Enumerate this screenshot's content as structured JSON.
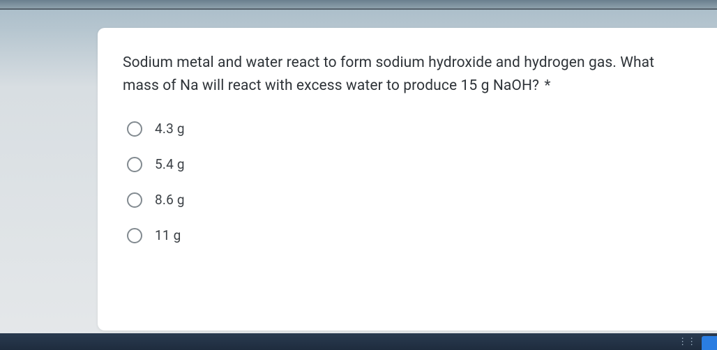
{
  "card": {
    "question_text": "Sodium metal and water react to form sodium hydroxide and hydrogen gas. What mass of Na will react with excess water to produce 15 g NaOH?",
    "required_marker": "*",
    "options": [
      {
        "label": "4.3 g"
      },
      {
        "label": "5.4 g"
      },
      {
        "label": "8.6 g"
      },
      {
        "label": "11 g"
      }
    ]
  },
  "styling": {
    "card_bg": "#ffffff",
    "question_color": "#2e3338",
    "option_color": "#3c4146",
    "radio_border": "#828a90",
    "body_gradient_top": "#a8bcc8",
    "body_gradient_bottom": "#e5e8ea",
    "taskbar_bg": "#1e2c3e",
    "accent_blue": "#2a7de1",
    "question_fontsize": 21,
    "option_fontsize": 19,
    "radio_size": 22
  }
}
